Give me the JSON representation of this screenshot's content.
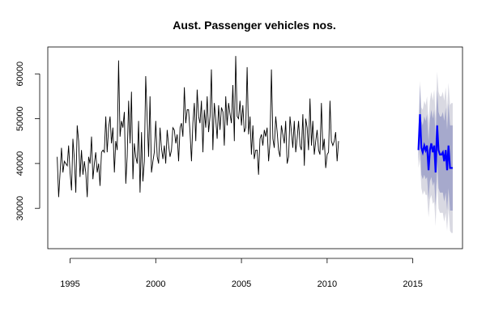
{
  "chart_data": {
    "type": "line",
    "title": "Aust. Passenger vehicles nos.",
    "xlabel": "",
    "ylabel": "",
    "xlim": [
      1993.7,
      2017.9
    ],
    "ylim": [
      21000,
      66000
    ],
    "x_ticks": [
      "1995",
      "2000",
      "2005",
      "2010",
      "2015"
    ],
    "y_ticks": [
      "30000",
      "40000",
      "50000",
      "60000"
    ],
    "grid": false,
    "legend": "none",
    "colors": {
      "history": "#000000",
      "forecast": "#0000ff",
      "band_80": "#a6a9cc",
      "band_95": "#d9d9e2"
    },
    "series": [
      {
        "role": "history",
        "x_start": 1994.25,
        "x_step": 0.0833333,
        "values": [
          41500,
          32500,
          38000,
          43500,
          38000,
          40500,
          40000,
          39500,
          44000,
          38000,
          34000,
          45500,
          41000,
          33500,
          48500,
          45000,
          37000,
          43000,
          37500,
          40500,
          38000,
          32500,
          41500,
          40000,
          46000,
          36500,
          40000,
          42500,
          38000,
          40000,
          35000,
          42500,
          43000,
          42500,
          50500,
          42500,
          48000,
          50500,
          44500,
          48000,
          38000,
          45000,
          43000,
          63000,
          46000,
          49500,
          48000,
          51500,
          35500,
          41500,
          54000,
          44500,
          56000,
          36500,
          44500,
          41500,
          40000,
          49500,
          33500,
          47000,
          36000,
          40500,
          59500,
          50000,
          41500,
          55000,
          38000,
          40500,
          42500,
          49500,
          41500,
          40000,
          48000,
          43500,
          41000,
          44000,
          40000,
          47500,
          44000,
          41500,
          43000,
          48000,
          47500,
          44500,
          46500,
          40500,
          48000,
          49000,
          46000,
          57000,
          49000,
          52000,
          52000,
          47000,
          40500,
          49000,
          53500,
          45000,
          56500,
          50500,
          49000,
          54000,
          42500,
          52000,
          48000,
          55000,
          47000,
          50500,
          61000,
          43000,
          53500,
          50000,
          45500,
          53000,
          47500,
          52500,
          51500,
          44000,
          55000,
          48500,
          53500,
          51000,
          49000,
          57500,
          45000,
          64000,
          50500,
          50000,
          54000,
          48500,
          53000,
          47000,
          48000,
          61500,
          46500,
          50500,
          42000,
          48500,
          41000,
          43000,
          43000,
          37500,
          45500,
          46500,
          44000,
          47500,
          46000,
          48000,
          40500,
          44500,
          61000,
          45500,
          43500,
          50500,
          47000,
          43000,
          41500,
          48500,
          46500,
          44500,
          49500,
          40000,
          41500,
          50500,
          47000,
          43500,
          49500,
          42500,
          45500,
          49500,
          44000,
          43000,
          51000,
          39500,
          50000,
          48000,
          43000,
          54500,
          44000,
          49500,
          42000,
          45000,
          47500,
          43000,
          42000,
          53500,
          43000,
          45500,
          39000,
          42000,
          42500,
          54000,
          45000,
          44000,
          45000,
          47000,
          40500,
          45000
        ]
      },
      {
        "role": "forecast",
        "x": [
          2015.33,
          2015.42,
          2015.5,
          2015.58,
          2015.67,
          2015.75,
          2015.83,
          2015.92,
          2016.0,
          2016.08,
          2016.17,
          2016.25,
          2016.33,
          2016.42,
          2016.5,
          2016.58,
          2016.67,
          2016.75,
          2016.83,
          2016.92,
          2017.0,
          2017.08,
          2017.17,
          2017.25,
          2017.33
        ],
        "values": [
          43000,
          51000,
          43500,
          42500,
          44000,
          43000,
          44000,
          38500,
          43000,
          44500,
          42500,
          44000,
          38000,
          48500,
          43000,
          42000,
          42000,
          42500,
          40500,
          43000,
          38500,
          44000,
          39000,
          39000,
          39000
        ],
        "lo80": [
          40500,
          44500,
          37500,
          36500,
          37500,
          36500,
          37000,
          32000,
          36000,
          37000,
          35000,
          36000,
          30500,
          40500,
          34500,
          33500,
          33500,
          33500,
          31500,
          33500,
          29500,
          34500,
          29500,
          29500,
          29500
        ],
        "hi80": [
          45500,
          57500,
          49500,
          48500,
          50500,
          49500,
          51000,
          45000,
          50000,
          52000,
          50000,
          52000,
          45500,
          56500,
          51500,
          50500,
          50500,
          51500,
          49500,
          52500,
          47500,
          53500,
          48500,
          48500,
          48500
        ],
        "lo95": [
          39000,
          41000,
          34500,
          33000,
          34000,
          33000,
          33000,
          28000,
          32000,
          33000,
          31000,
          31500,
          26000,
          36000,
          30000,
          29000,
          29000,
          29000,
          27000,
          29000,
          25000,
          30000,
          25000,
          24500,
          24500
        ],
        "hi95": [
          47000,
          58500,
          52500,
          52000,
          54000,
          53000,
          55000,
          49000,
          54000,
          56000,
          54000,
          56500,
          50000,
          60500,
          56000,
          55000,
          55000,
          56000,
          54000,
          57000,
          52000,
          58000,
          53000,
          53500,
          53500
        ]
      }
    ]
  }
}
